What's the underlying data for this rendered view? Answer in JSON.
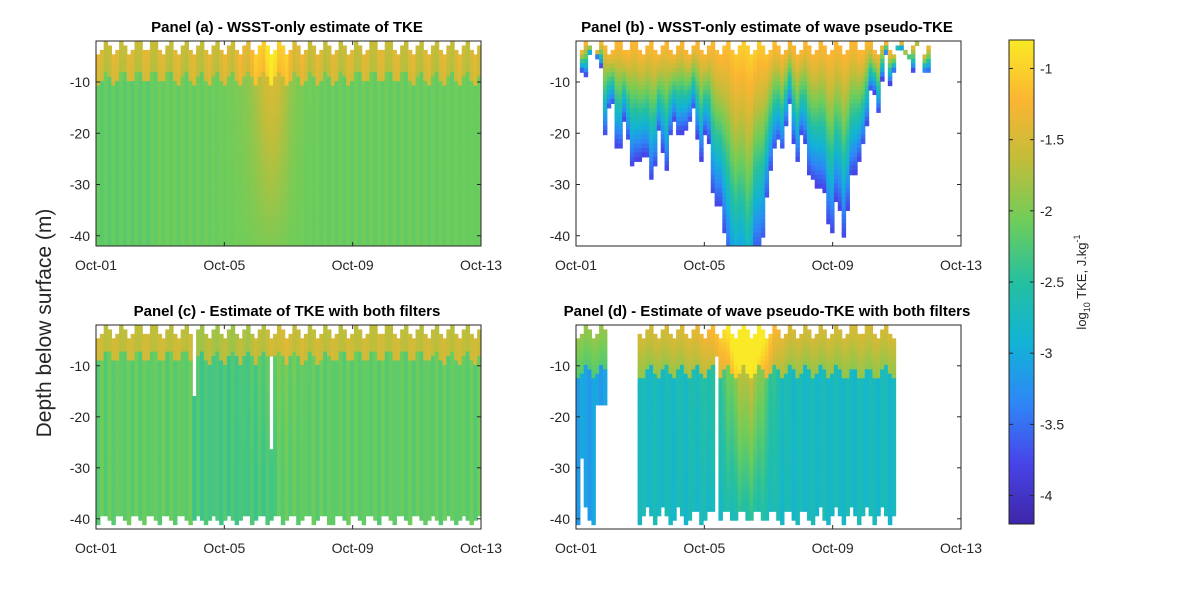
{
  "figure": {
    "shared_ylabel": "Depth below surface (m)"
  },
  "chart_data": [
    {
      "type": "heatmap",
      "title": "Panel (a) - WSST-only estimate of TKE",
      "xlabel": "",
      "ylabel": "Depth below surface (m)",
      "x_ticks": [
        "Oct-01",
        "Oct-05",
        "Oct-09",
        "Oct-13"
      ],
      "x_range_days": [
        1,
        13
      ],
      "y_ticks": [
        -10,
        -20,
        -30,
        -40
      ],
      "ylim": [
        -42,
        -2
      ],
      "coverage": "full",
      "near_surface_log10_tke": -1.5,
      "deep_log10_tke": -2.1,
      "energetic_period": "Oct-06 to Oct-07"
    },
    {
      "type": "heatmap",
      "title": "Panel (b) - WSST-only estimate of wave pseudo-TKE",
      "xlabel": "",
      "ylabel": "",
      "x_ticks": [
        "Oct-01",
        "Oct-05",
        "Oct-09",
        "Oct-13"
      ],
      "x_range_days": [
        1,
        13
      ],
      "y_ticks": [
        -10,
        -20,
        -30,
        -40
      ],
      "ylim": [
        -42,
        -2
      ],
      "coverage": "surface-trapped, deepest near Oct-06",
      "near_surface_log10_tke": -1.2,
      "deep_log10_tke": -3.8
    },
    {
      "type": "heatmap",
      "title": "Panel (c) - Estimate of TKE with both filters",
      "xlabel": "",
      "ylabel": "",
      "x_ticks": [
        "Oct-01",
        "Oct-05",
        "Oct-09",
        "Oct-13"
      ],
      "x_range_days": [
        1,
        13
      ],
      "y_ticks": [
        -10,
        -20,
        -30,
        -40
      ],
      "ylim": [
        -42,
        -2
      ],
      "coverage": "full with small gaps",
      "near_surface_log10_tke": -1.6,
      "deep_log10_tke": -2.1
    },
    {
      "type": "heatmap",
      "title": "Panel (d) - Estimate of wave pseudo-TKE with both filters",
      "xlabel": "",
      "ylabel": "",
      "x_ticks": [
        "Oct-01",
        "Oct-05",
        "Oct-09",
        "Oct-13"
      ],
      "x_range_days": [
        1,
        13
      ],
      "y_ticks": [
        -10,
        -20,
        -30,
        -40
      ],
      "ylim": [
        -42,
        -2
      ],
      "coverage": "gaps Oct-01 to Oct-02 and after Oct-11",
      "near_surface_log10_tke": -1.3,
      "deep_log10_tke": -2.8
    }
  ],
  "colorbar": {
    "label_prefix": "log",
    "label_sub": "10",
    "label_middle": " TKE, J.kg",
    "label_sup": "-1",
    "ticks": [
      -1,
      -1.5,
      -2,
      -2.5,
      -3,
      -3.5,
      -4
    ],
    "tick_labels": [
      "-1",
      "-1.5",
      "-2",
      "-2.5",
      "-3",
      "-3.5",
      "-4"
    ],
    "range": [
      -4.2,
      -0.8
    ],
    "colors": [
      "#3e26a8",
      "#4744e8",
      "#2e87f7",
      "#12b3d6",
      "#25c0a0",
      "#6ecd5a",
      "#c1bd3a",
      "#fbb532",
      "#f9e926"
    ]
  }
}
